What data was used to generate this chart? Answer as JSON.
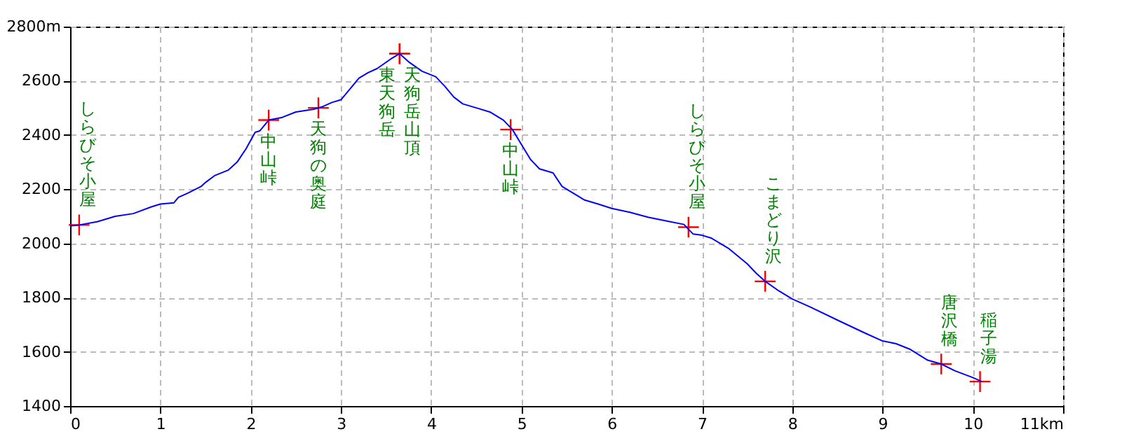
{
  "chart_data": {
    "type": "line",
    "x": [
      0,
      0.1,
      0.3,
      0.5,
      0.7,
      0.9,
      1.0,
      1.15,
      1.2,
      1.3,
      1.45,
      1.5,
      1.6,
      1.75,
      1.85,
      1.95,
      2.0,
      2.05,
      2.1,
      2.2,
      2.35,
      2.5,
      2.7,
      2.8,
      2.9,
      3.0,
      3.1,
      3.2,
      3.3,
      3.4,
      3.55,
      3.65,
      3.75,
      3.9,
      4.05,
      4.15,
      4.25,
      4.35,
      4.5,
      4.65,
      4.8,
      4.9,
      5.0,
      5.1,
      5.2,
      5.35,
      5.45,
      5.55,
      5.7,
      5.85,
      6.0,
      6.2,
      6.4,
      6.6,
      6.8,
      6.9,
      7.0,
      7.1,
      7.3,
      7.5,
      7.6,
      7.7,
      7.85,
      8.0,
      8.2,
      8.5,
      8.8,
      9.0,
      9.15,
      9.3,
      9.5,
      9.65,
      9.8,
      10.0,
      10.1
    ],
    "series": [
      {
        "color": "#0000ff",
        "values": [
          2065,
          2068,
          2080,
          2100,
          2110,
          2135,
          2145,
          2150,
          2170,
          2185,
          2210,
          2225,
          2250,
          2270,
          2300,
          2350,
          2380,
          2410,
          2415,
          2455,
          2465,
          2485,
          2495,
          2505,
          2520,
          2530,
          2570,
          2610,
          2630,
          2645,
          2680,
          2700,
          2670,
          2635,
          2615,
          2580,
          2540,
          2515,
          2500,
          2485,
          2455,
          2420,
          2365,
          2310,
          2275,
          2260,
          2210,
          2190,
          2160,
          2145,
          2129,
          2115,
          2097,
          2083,
          2070,
          2035,
          2030,
          2020,
          1980,
          1925,
          1890,
          1860,
          1825,
          1795,
          1765,
          1717,
          1670,
          1640,
          1630,
          1610,
          1569,
          1555,
          1530,
          1505,
          1490
        ]
      }
    ],
    "xlim": [
      0,
      11
    ],
    "ylim": [
      1400,
      2800
    ],
    "xticks": [
      0,
      1,
      2,
      3,
      4,
      5,
      6,
      7,
      8,
      9,
      10,
      {
        "value": 11,
        "label": "11km"
      }
    ],
    "yticks": [
      1400,
      1600,
      1800,
      2000,
      2200,
      2400,
      2600,
      {
        "value": 2800,
        "label": "2800m"
      }
    ],
    "grid": true,
    "line_style": "solid",
    "annotations": [
      {
        "text": "しらびそ小屋",
        "x": 0.1,
        "y": 2068
      },
      {
        "text": "中山峠",
        "x": 2.2,
        "y": 2455
      },
      {
        "text": "天狗の奥庭",
        "x": 2.75,
        "y": 2500
      },
      {
        "text": "東天狗岳",
        "x": 3.65,
        "y": 2700
      },
      {
        "text": "天狗岳山頂",
        "x": 3.65,
        "y": 2700
      },
      {
        "text": "中山峠",
        "x": 4.88,
        "y": 2420
      },
      {
        "text": "しらびそ小屋",
        "x": 6.85,
        "y": 2060
      },
      {
        "text": "こまどり沢",
        "x": 7.7,
        "y": 1860
      },
      {
        "text": "唐沢橋",
        "x": 9.65,
        "y": 1555
      },
      {
        "text": "稲子湯",
        "x": 10.08,
        "y": 1490
      }
    ]
  }
}
